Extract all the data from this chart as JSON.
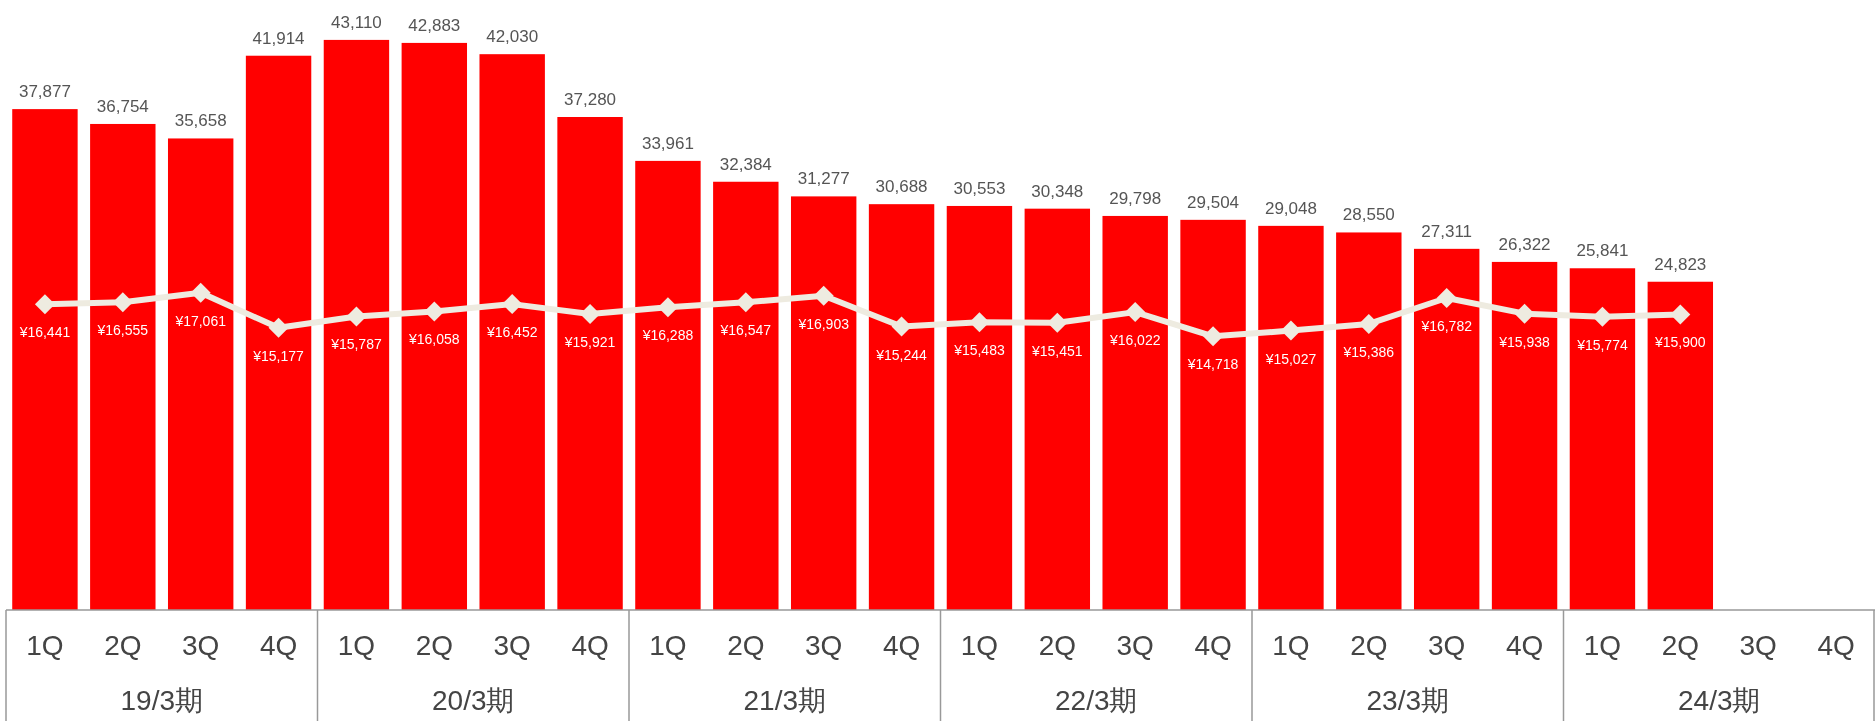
{
  "chart_data": {
    "type": "bar",
    "categories": [
      "1Q",
      "2Q",
      "3Q",
      "4Q",
      "1Q",
      "2Q",
      "3Q",
      "4Q",
      "1Q",
      "2Q",
      "3Q",
      "4Q",
      "1Q",
      "2Q",
      "3Q",
      "4Q",
      "1Q",
      "2Q",
      "3Q",
      "4Q",
      "1Q",
      "2Q",
      "3Q",
      "4Q"
    ],
    "series": [
      {
        "color": "#ff0000",
        "values": [
          37877,
          36754,
          35658,
          41914,
          43110,
          42883,
          42030,
          37280,
          33961,
          32384,
          31277,
          30688,
          30553,
          30348,
          29798,
          29504,
          29048,
          28550,
          27311,
          26322,
          25841,
          24823,
          null,
          null
        ],
        "value_labels": [
          "37,877",
          "36,754",
          "35,658",
          "41,914",
          "43,110",
          "42,883",
          "42,030",
          "37,280",
          "33,961",
          "32,384",
          "31,277",
          "30,688",
          "30,553",
          "30,348",
          "29,798",
          "29,504",
          "29,048",
          "28,550",
          "27,311",
          "26,322",
          "25,841",
          "24,823",
          null,
          null
        ]
      },
      {
        "type": "line",
        "axis": "y2",
        "color": "#eeebe0",
        "marker": "diamond",
        "values": [
          16441,
          16555,
          17061,
          15177,
          15787,
          16058,
          16452,
          15921,
          16288,
          16547,
          16903,
          15244,
          15483,
          15451,
          16022,
          14718,
          15027,
          15386,
          16782,
          15938,
          15774,
          15900,
          null,
          null
        ],
        "value_labels": [
          "¥16,441",
          "¥16,555",
          "¥17,061",
          "¥15,177",
          "¥15,787",
          "¥16,058",
          "¥16,452",
          "¥15,921",
          "¥16,288",
          "¥16,547",
          "¥16,903",
          "¥15,244",
          "¥15,483",
          "¥15,451",
          "¥16,022",
          "¥14,718",
          "¥15,027",
          "¥15,386",
          "¥16,782",
          "¥15,938",
          "¥15,774",
          "¥15,900",
          null,
          null
        ]
      }
    ],
    "tick_labels": "x",
    "annotations": [
      "19/3期",
      "20/3期",
      "21/3期",
      "22/3期",
      "23/3期",
      "24/3期"
    ]
  }
}
